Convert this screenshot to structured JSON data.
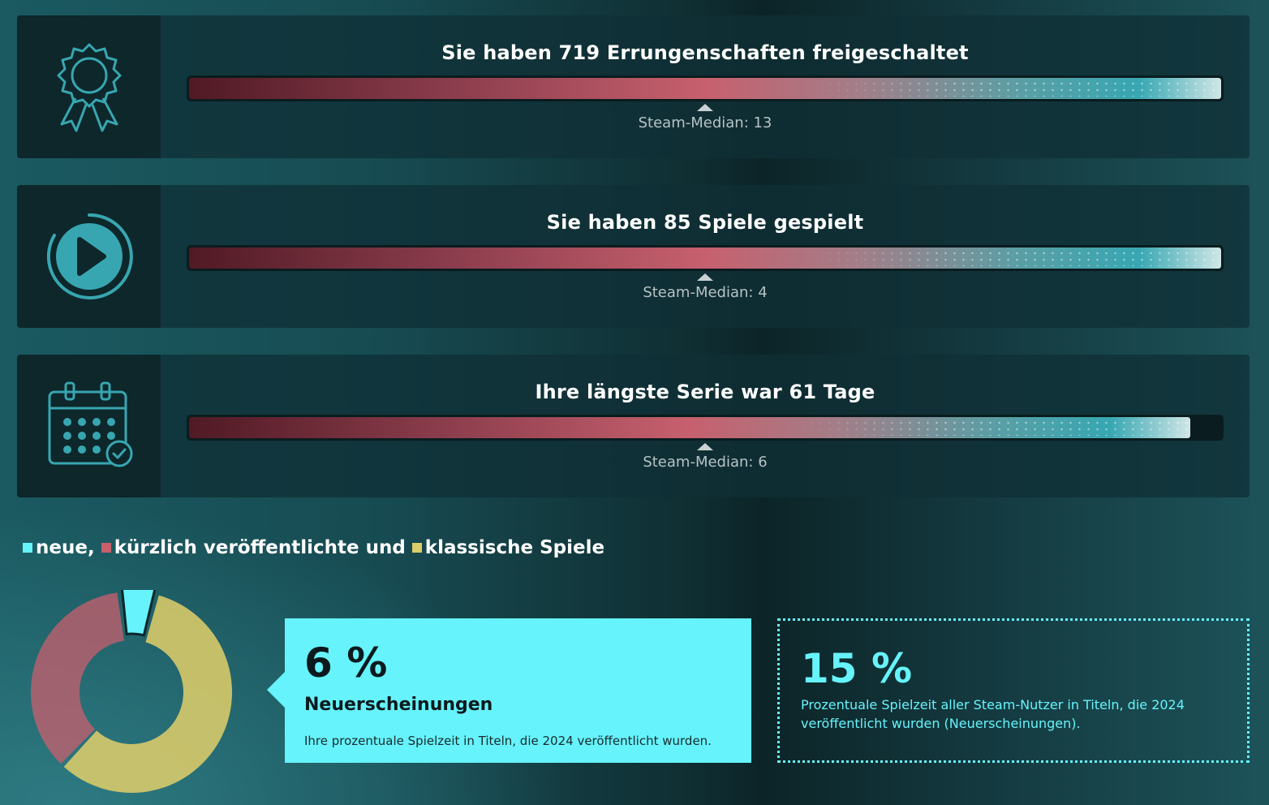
{
  "stats": [
    {
      "title": "Sie haben 719 Errungenschaften freigeschaltet",
      "median_label": "Steam-Median: 13",
      "icon": "award-ribbon-icon",
      "fill_fraction": 1.0
    },
    {
      "title": "Sie haben 85 Spiele gespielt",
      "median_label": "Steam-Median: 4",
      "icon": "play-circle-icon",
      "fill_fraction": 1.0
    },
    {
      "title": "Ihre längste Serie war 61 Tage",
      "median_label": "Steam-Median: 6",
      "icon": "calendar-check-icon",
      "fill_fraction": 0.97
    }
  ],
  "legend": {
    "new": "neue,",
    "recent": "kürzlich veröffentlichte und",
    "classic": "klassische Spiele"
  },
  "colors": {
    "new": "#66f3fb",
    "recent": "#c95f6d",
    "classic": "#dccc6a",
    "icon": "#38a6b0"
  },
  "donut": {
    "segments": [
      {
        "key": "new",
        "percent": 6
      },
      {
        "key": "classic",
        "percent": 58
      },
      {
        "key": "recent",
        "percent": 36
      }
    ]
  },
  "callout": {
    "percent": "6 %",
    "category": "Neuerscheinungen",
    "description": "Ihre prozentuale Spielzeit in Titeln, die 2024 veröffentlicht wurden."
  },
  "comparison": {
    "percent": "15 %",
    "description": "Prozentuale Spielzeit aller Steam-Nutzer in Titeln, die 2024 veröffentlicht wurden (Neuerscheinungen)."
  }
}
